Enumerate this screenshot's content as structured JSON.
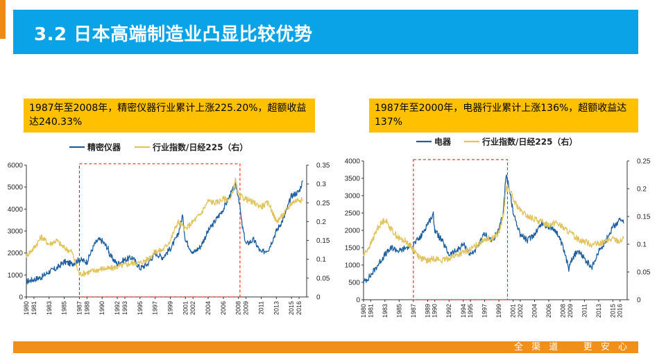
{
  "header": {
    "title": "3.2 日本高端制造业凸显比较优势",
    "brand_color": "#0aa3e8",
    "accent_color": "#ef8a17"
  },
  "callouts": {
    "left": "1987年至2008年，精密仪器行业累计上涨225.20%，超额收益达240.33%",
    "right": "1987年至2000年，电器行业累计上涨136%，超额收益达137%"
  },
  "footer": {
    "slogan": "全 渠 道    更 安 心",
    "color": "#f0901a"
  },
  "chart_data": [
    {
      "type": "line",
      "legend": [
        "精密仪器",
        "行业指数/日经225（右）"
      ],
      "series": [
        {
          "name": "精密仪器",
          "axis": "left",
          "color": "#1f5fa0",
          "x": [
            1980,
            1981,
            1982,
            1983,
            1984,
            1985,
            1986,
            1987,
            1988,
            1989,
            1989.5,
            1990,
            1990.8,
            1991,
            1992,
            1993,
            1994,
            1995,
            1996,
            1997,
            1998,
            1999,
            2000,
            2000.6,
            2001,
            2002,
            2003,
            2004,
            2005,
            2006,
            2007,
            2007.6,
            2008,
            2008.5,
            2009,
            2010,
            2011,
            2012,
            2013,
            2014,
            2015,
            2016,
            2016.5
          ],
          "values": [
            700,
            800,
            900,
            1150,
            1300,
            1600,
            1500,
            1700,
            1600,
            2400,
            2600,
            2550,
            2200,
            1900,
            1500,
            1700,
            1800,
            1300,
            1500,
            2000,
            1800,
            2200,
            2800,
            3700,
            2600,
            2000,
            2300,
            3000,
            3500,
            4000,
            4700,
            5100,
            4600,
            3200,
            2400,
            2600,
            2000,
            2200,
            3000,
            3600,
            4600,
            4800,
            5300
          ]
        },
        {
          "name": "行业指数/日经225（右）",
          "axis": "right",
          "color": "#e0c35e",
          "x": [
            1980,
            1981,
            1982,
            1983,
            1984,
            1985,
            1986,
            1987,
            1988,
            1989,
            1990,
            1991,
            1992,
            1993,
            1994,
            1995,
            1996,
            1997,
            1998,
            1999,
            2000,
            2001,
            2002,
            2003,
            2004,
            2005,
            2006,
            2007,
            2007.6,
            2008,
            2009,
            2010,
            2011,
            2012,
            2013,
            2014,
            2015,
            2016,
            2016.5
          ],
          "values": [
            0.11,
            0.13,
            0.16,
            0.14,
            0.15,
            0.13,
            0.12,
            0.06,
            0.065,
            0.07,
            0.075,
            0.075,
            0.08,
            0.085,
            0.09,
            0.09,
            0.1,
            0.12,
            0.125,
            0.15,
            0.2,
            0.18,
            0.2,
            0.22,
            0.255,
            0.25,
            0.26,
            0.26,
            0.31,
            0.27,
            0.26,
            0.25,
            0.24,
            0.25,
            0.2,
            0.22,
            0.25,
            0.26,
            0.255
          ]
        }
      ],
      "x_ticks": [
        "1980",
        "1981",
        "1983",
        "1985",
        "1987",
        "1988",
        "1990",
        "1992",
        "1993",
        "1995",
        "1997",
        "1999",
        "2001",
        "2002",
        "2004",
        "2006",
        "2008",
        "2009",
        "2011",
        "2013",
        "2015",
        "2016"
      ],
      "y_left": {
        "min": 0,
        "max": 6000,
        "ticks": [
          "0",
          "1000",
          "2000",
          "3000",
          "4000",
          "5000",
          "6000"
        ]
      },
      "y_right": {
        "min": 0,
        "max": 0.35,
        "ticks": [
          "0",
          "0.05",
          "0.1",
          "0.15",
          "0.2",
          "0.25",
          "0.3",
          "0.35"
        ]
      },
      "highlight": {
        "from": 1987,
        "to": 2008,
        "color": "#ff0000"
      },
      "grid": false
    },
    {
      "type": "line",
      "legend": [
        "电器",
        "行业指数/日经225（右）"
      ],
      "series": [
        {
          "name": "电器",
          "axis": "left",
          "color": "#1f5fa0",
          "x": [
            1980,
            1981,
            1982,
            1983,
            1984,
            1985,
            1986,
            1987,
            1988,
            1989,
            1989.8,
            1990,
            1991,
            1992,
            1993,
            1994,
            1995,
            1996,
            1997,
            1998,
            1999,
            1999.6,
            2000,
            2000.5,
            2001,
            2002,
            2003,
            2004,
            2005,
            2006,
            2007,
            2008,
            2008.8,
            2009,
            2010,
            2011,
            2012,
            2013,
            2014,
            2015,
            2016,
            2016.5
          ],
          "values": [
            500,
            700,
            1000,
            1300,
            1500,
            1400,
            1500,
            1600,
            1800,
            2200,
            2450,
            2000,
            1700,
            1300,
            1400,
            1600,
            1300,
            1500,
            1900,
            1700,
            2000,
            2500,
            3600,
            3200,
            2500,
            1900,
            1700,
            1900,
            2200,
            2100,
            2000,
            1500,
            900,
            1100,
            1400,
            1200,
            900,
            1400,
            1700,
            2100,
            2300,
            2200
          ]
        },
        {
          "name": "行业指数/日经225（右）",
          "axis": "right",
          "color": "#e0c35e",
          "x": [
            1980,
            1981,
            1982,
            1983,
            1984,
            1985,
            1986,
            1987,
            1988,
            1989,
            1990,
            1991,
            1992,
            1993,
            1994,
            1995,
            1996,
            1997,
            1998,
            1999,
            1999.6,
            2000,
            2000.5,
            2001,
            2002,
            2003,
            2004,
            2005,
            2006,
            2007,
            2008,
            2009,
            2010,
            2011,
            2012,
            2013,
            2014,
            2015,
            2016,
            2016.5
          ],
          "values": [
            0.08,
            0.1,
            0.13,
            0.145,
            0.125,
            0.11,
            0.105,
            0.09,
            0.075,
            0.07,
            0.075,
            0.07,
            0.075,
            0.08,
            0.085,
            0.09,
            0.1,
            0.11,
            0.11,
            0.12,
            0.15,
            0.2,
            0.2,
            0.18,
            0.16,
            0.15,
            0.145,
            0.14,
            0.135,
            0.14,
            0.13,
            0.12,
            0.11,
            0.105,
            0.1,
            0.1,
            0.105,
            0.11,
            0.105,
            0.11
          ]
        }
      ],
      "x_ticks": [
        "1980",
        "1981",
        "1983",
        "1985",
        "1987",
        "1989",
        "1990",
        "1992",
        "1994",
        "1995",
        "1997",
        "1999",
        "2001",
        "2002",
        "2004",
        "2006",
        "2008",
        "2009",
        "2011",
        "2013",
        "2015",
        "2016"
      ],
      "y_left": {
        "min": 0,
        "max": 4000,
        "ticks": [
          "0",
          "500",
          "1000",
          "1500",
          "2000",
          "2500",
          "3000",
          "3500",
          "4000"
        ]
      },
      "y_right": {
        "min": 0,
        "max": 0.25,
        "ticks": [
          "0",
          "0.05",
          "0.1",
          "0.15",
          "0.2",
          "0.25"
        ]
      },
      "highlight": {
        "from": 1987,
        "to": 2000,
        "color": "#ff0000"
      },
      "grid": false
    }
  ]
}
